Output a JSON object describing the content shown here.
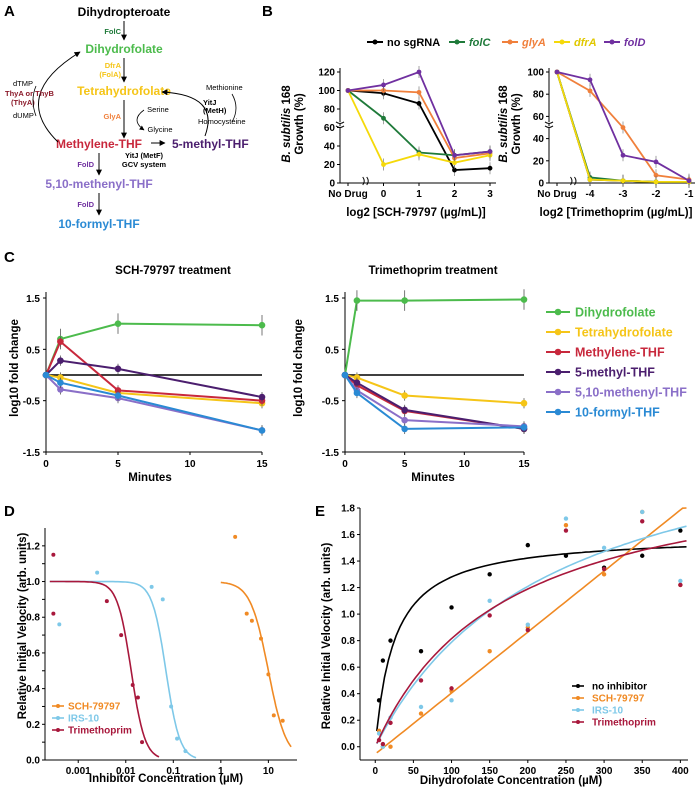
{
  "panel_labels": [
    "A",
    "B",
    "C",
    "D",
    "E"
  ],
  "pathway": {
    "compounds": {
      "dhp": "Dihydropteroate",
      "dhf": "Dihydrofolate",
      "thf": "Tetrahydrofolate",
      "methylene": "Methylene-THF",
      "methyl": "5-methyl-THF",
      "methenyl": "5,10-methenyl-THF",
      "formyl": "10-formyl-THF"
    },
    "enzymes": {
      "folc": "FolC",
      "dfra": "DfrA",
      "fola": "(FolA)",
      "glya": "GlyA",
      "thy1": "ThyA or ThyB",
      "thy2": "(ThyA)",
      "yitj1": "YitJ",
      "yitj2": "(MetH)",
      "yitj3": "YitJ (MetF)",
      "gcv": "GCV system",
      "fold1": "FolD",
      "fold2": "FolD"
    },
    "metabolites": {
      "dtmp": "dTMP",
      "dump": "dUMP",
      "serine": "Serine",
      "glycine": "Glycine",
      "methionine": "Methionine",
      "homocysteine": "Homocysteine"
    }
  },
  "panel_b": {
    "legend": [
      "no sgRNA",
      "folC",
      "glyA",
      "dfrA",
      "folD"
    ],
    "ylabel_italic": "B. subtilis",
    "ylabel_rest": " 168",
    "ylabel2": "Growth (%)",
    "left_xlabel": "log2 [SCH-79797 (µg/mL)]",
    "right_xlabel": "log2 [Trimethoprim (µg/mL)]",
    "no_drug": "No Drug"
  },
  "panel_c": {
    "left_title": "SCH-79797 treatment",
    "right_title": "Trimethoprim treatment",
    "xlabel": "Minutes",
    "ylabel": "log10 fold change",
    "legend": [
      "Dihydrofolate",
      "Tetrahydrofolate",
      "Methylene-THF",
      "5-methyl-THF",
      "5,10-methenyl-THF",
      "10-formyl-THF"
    ]
  },
  "panel_d": {
    "xlabel": "Inhibitor Concentration (µM)",
    "ylabel": "Relative Initial Velocity (arb. units)",
    "legend": [
      "SCH-79797",
      "IRS-10",
      "Trimethoprim"
    ]
  },
  "panel_e": {
    "xlabel": "Dihydrofolate Concentration (µM)",
    "ylabel": "Relative Initial Velocity (arb. units)",
    "legend": [
      "no inhibitor",
      "SCH-79797",
      "IRS-10",
      "Trimethoprim"
    ]
  },
  "colors": {
    "black": "#000000",
    "green": "#1f7a3a",
    "orange": "#f0803c",
    "yellow": "#f5d90a",
    "purple": "#7030a0",
    "c_green": "#4cbb4c",
    "c_yellow": "#f5c518",
    "c_red": "#c8283c",
    "c_darkpurple": "#4b1e6e",
    "c_lavender": "#8a6fc8",
    "c_blue": "#2a8ad4",
    "d_orange": "#f08a24",
    "d_sky": "#7ec8e8",
    "d_crimson": "#a8183c"
  },
  "chart_data": [
    {
      "id": "B-left",
      "type": "line",
      "xlabel": "log2 [SCH-79797 (µg/mL)]",
      "ylabel": "B. subtilis 168 Growth (%)",
      "categories": [
        "No Drug",
        "0",
        "1",
        "2",
        "3"
      ],
      "ylim": [
        0,
        120
      ],
      "series": [
        {
          "name": "no sgRNA",
          "values": [
            100,
            97,
            86,
            14,
            16
          ]
        },
        {
          "name": "folC",
          "values": [
            100,
            70,
            33,
            30,
            34
          ]
        },
        {
          "name": "glyA",
          "values": [
            100,
            100,
            98,
            27,
            32
          ]
        },
        {
          "name": "dfrA",
          "values": [
            100,
            20,
            31,
            22,
            30
          ]
        },
        {
          "name": "folD",
          "values": [
            100,
            106,
            120,
            30,
            34
          ]
        }
      ]
    },
    {
      "id": "B-right",
      "type": "line",
      "xlabel": "log2 [Trimethoprim (µg/mL)]",
      "ylabel": "B. subtilis 168 Growth (%)",
      "categories": [
        "No Drug",
        "-4",
        "-3",
        "-2",
        "-1"
      ],
      "ylim": [
        0,
        100
      ],
      "series": [
        {
          "name": "no sgRNA",
          "values": [
            100,
            3,
            2,
            1,
            1
          ]
        },
        {
          "name": "folC",
          "values": [
            100,
            5,
            2,
            1,
            1
          ]
        },
        {
          "name": "glyA",
          "values": [
            100,
            83,
            50,
            7,
            3
          ]
        },
        {
          "name": "dfrA",
          "values": [
            100,
            3,
            2,
            1,
            1
          ]
        },
        {
          "name": "folD",
          "values": [
            100,
            93,
            25,
            19,
            2
          ]
        }
      ]
    },
    {
      "id": "C-left",
      "type": "line",
      "title": "SCH-79797 treatment",
      "xlabel": "Minutes",
      "ylabel": "log10 fold change",
      "x": [
        0,
        1,
        5,
        15
      ],
      "xlim": [
        0,
        15
      ],
      "ylim": [
        -1.5,
        1.5
      ],
      "series": [
        {
          "name": "Dihydrofolate",
          "values": [
            0,
            0.7,
            1.0,
            0.97
          ]
        },
        {
          "name": "Tetrahydrofolate",
          "values": [
            0,
            -0.05,
            -0.35,
            -0.55
          ]
        },
        {
          "name": "Methylene-THF",
          "values": [
            0,
            0.65,
            -0.3,
            -0.5
          ]
        },
        {
          "name": "5-methyl-THF",
          "values": [
            0,
            0.28,
            0.12,
            -0.43
          ]
        },
        {
          "name": "5,10-methenyl-THF",
          "values": [
            0,
            -0.28,
            -0.45,
            -1.08
          ]
        },
        {
          "name": "10-formyl-THF",
          "values": [
            0,
            -0.15,
            -0.4,
            -1.08
          ]
        }
      ]
    },
    {
      "id": "C-right",
      "type": "line",
      "title": "Trimethoprim treatment",
      "xlabel": "Minutes",
      "ylabel": "log10 fold change",
      "x": [
        0,
        1,
        5,
        15
      ],
      "xlim": [
        0,
        15
      ],
      "ylim": [
        -1.5,
        1.5
      ],
      "series": [
        {
          "name": "Dihydrofolate",
          "values": [
            0,
            1.45,
            1.45,
            1.47
          ]
        },
        {
          "name": "Tetrahydrofolate",
          "values": [
            0,
            -0.05,
            -0.4,
            -0.55
          ]
        },
        {
          "name": "Methylene-THF",
          "values": [
            0,
            -0.2,
            -0.7,
            -1.05
          ]
        },
        {
          "name": "5-methyl-THF",
          "values": [
            0,
            -0.15,
            -0.68,
            -1.05
          ]
        },
        {
          "name": "5,10-methenyl-THF",
          "values": [
            0,
            -0.3,
            -0.88,
            -1.0
          ]
        },
        {
          "name": "10-formyl-THF",
          "values": [
            0,
            -0.35,
            -1.05,
            -1.02
          ]
        }
      ]
    },
    {
      "id": "D",
      "type": "scatter",
      "xlabel": "Inhibitor Concentration (µM)",
      "ylabel": "Relative Initial Velocity (arb. units)",
      "xscale": "log",
      "xlim": [
        0.0002,
        40
      ],
      "ylim": [
        0,
        1.3
      ],
      "series": [
        {
          "name": "SCH-79797",
          "points": [
            [
              2,
              1.25
            ],
            [
              3.5,
              0.82
            ],
            [
              4.5,
              0.78
            ],
            [
              7,
              0.68
            ],
            [
              10,
              0.48
            ],
            [
              13,
              0.25
            ],
            [
              20,
              0.22
            ]
          ],
          "fit": {
            "ic50": 10,
            "hill": 2.3
          }
        },
        {
          "name": "IRS-10",
          "points": [
            [
              0.0004,
              0.76
            ],
            [
              0.0025,
              1.05
            ],
            [
              0.035,
              0.97
            ],
            [
              0.06,
              0.9
            ],
            [
              0.09,
              0.3
            ],
            [
              0.12,
              0.12
            ],
            [
              0.18,
              0.05
            ]
          ],
          "fit": {
            "ic50": 0.07,
            "hill": 3.0
          }
        },
        {
          "name": "Trimethoprim",
          "points": [
            [
              0.0003,
              1.15
            ],
            [
              0.0003,
              0.82
            ],
            [
              0.004,
              0.89
            ],
            [
              0.008,
              0.7
            ],
            [
              0.014,
              0.42
            ],
            [
              0.018,
              0.35
            ],
            [
              0.022,
              0.1
            ]
          ],
          "fit": {
            "ic50": 0.013,
            "hill": 3.0
          }
        }
      ]
    },
    {
      "id": "E",
      "type": "scatter",
      "xlabel": "Dihydrofolate Concentration (µM)",
      "ylabel": "Relative Initial Velocity (arb. units)",
      "xlim": [
        -20,
        410
      ],
      "ylim": [
        -0.1,
        1.8
      ],
      "series": [
        {
          "name": "no inhibitor",
          "points": [
            [
              5,
              0.35
            ],
            [
              10,
              0.65
            ],
            [
              20,
              0.8
            ],
            [
              60,
              0.72
            ],
            [
              100,
              1.05
            ],
            [
              150,
              1.3
            ],
            [
              200,
              1.52
            ],
            [
              250,
              1.44
            ],
            [
              300,
              1.35
            ],
            [
              350,
              1.44
            ],
            [
              400,
              1.63
            ]
          ],
          "fit": {
            "vmax": 1.6,
            "km": 25
          }
        },
        {
          "name": "SCH-79797",
          "points": [
            [
              5,
              0.12
            ],
            [
              10,
              0.0
            ],
            [
              20,
              0.0
            ],
            [
              60,
              0.25
            ],
            [
              100,
              0.42
            ],
            [
              150,
              0.72
            ],
            [
              200,
              0.9
            ],
            [
              250,
              1.67
            ],
            [
              300,
              1.3
            ],
            [
              350,
              1.77
            ],
            [
              400,
              1.22
            ]
          ],
          "fit": {
            "vmax": 6.0,
            "km": 1000,
            "x0": 12
          }
        },
        {
          "name": "IRS-10",
          "points": [
            [
              5,
              0.1
            ],
            [
              10,
              0.0
            ],
            [
              20,
              0.22
            ],
            [
              60,
              0.3
            ],
            [
              100,
              0.35
            ],
            [
              150,
              1.1
            ],
            [
              200,
              0.92
            ],
            [
              250,
              1.72
            ],
            [
              300,
              1.5
            ],
            [
              350,
              1.77
            ],
            [
              400,
              1.25
            ]
          ],
          "fit": {
            "vmax": 2.6,
            "km": 230
          }
        },
        {
          "name": "Trimethoprim",
          "points": [
            [
              5,
              0.05
            ],
            [
              10,
              0.02
            ],
            [
              20,
              0.18
            ],
            [
              60,
              0.5
            ],
            [
              100,
              0.44
            ],
            [
              150,
              0.99
            ],
            [
              200,
              0.88
            ],
            [
              250,
              1.63
            ],
            [
              300,
              1.34
            ],
            [
              350,
              1.7
            ],
            [
              400,
              1.22
            ]
          ],
          "fit": {
            "vmax": 2.2,
            "km": 170
          }
        }
      ]
    }
  ]
}
